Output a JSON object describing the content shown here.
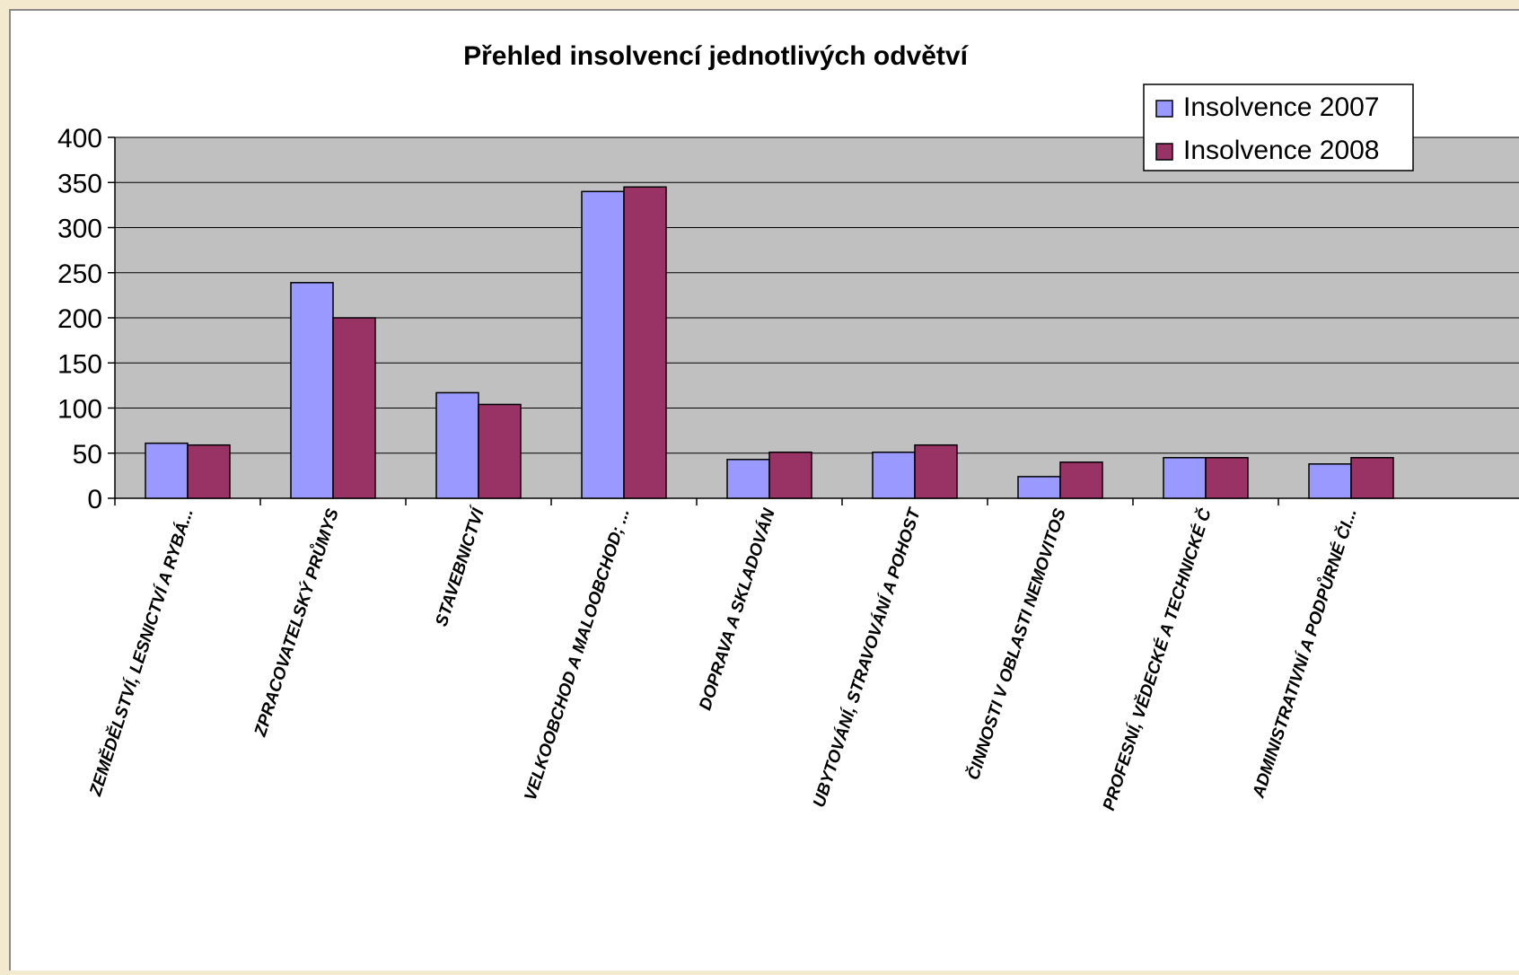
{
  "chart_data": {
    "type": "bar",
    "title": "Přehled insolvencí jednotlivých odvětví",
    "xlabel": "",
    "ylabel": "",
    "ylim": [
      0,
      400
    ],
    "yticks": [
      0,
      50,
      100,
      150,
      200,
      250,
      300,
      350,
      400
    ],
    "grid": true,
    "legend_position": "top-right",
    "categories": [
      "ZEMĚDĚLSTVÍ, LESNICTVÍ A RYBÁ...",
      "ZPRACOVATELSKÝ PRŮMYS",
      "STAVEBNICTVÍ",
      "VELKOOBCHOD A MALOOBCHOD; ...",
      "DOPRAVA A SKLADOVÁN",
      "UBYTOVÁNÍ, STRAVOVÁNÍ A POHOST",
      "ČINNOSTI V OBLASTI NEMOVITOS",
      "PROFESNÍ, VĚDECKÉ A TECHNICKÉ Č",
      "ADMINISTRATIVNÍ A PODPŮRNÉ ČI..."
    ],
    "series": [
      {
        "name": "Insolvence 2007",
        "color": "#9999ff",
        "values": [
          61,
          239,
          117,
          340,
          43,
          51,
          24,
          45,
          38
        ]
      },
      {
        "name": "Insolvence 2008",
        "color": "#993366",
        "values": [
          59,
          200,
          104,
          345,
          51,
          59,
          40,
          45,
          45
        ]
      }
    ],
    "plot_background": "#c0c0c0"
  }
}
